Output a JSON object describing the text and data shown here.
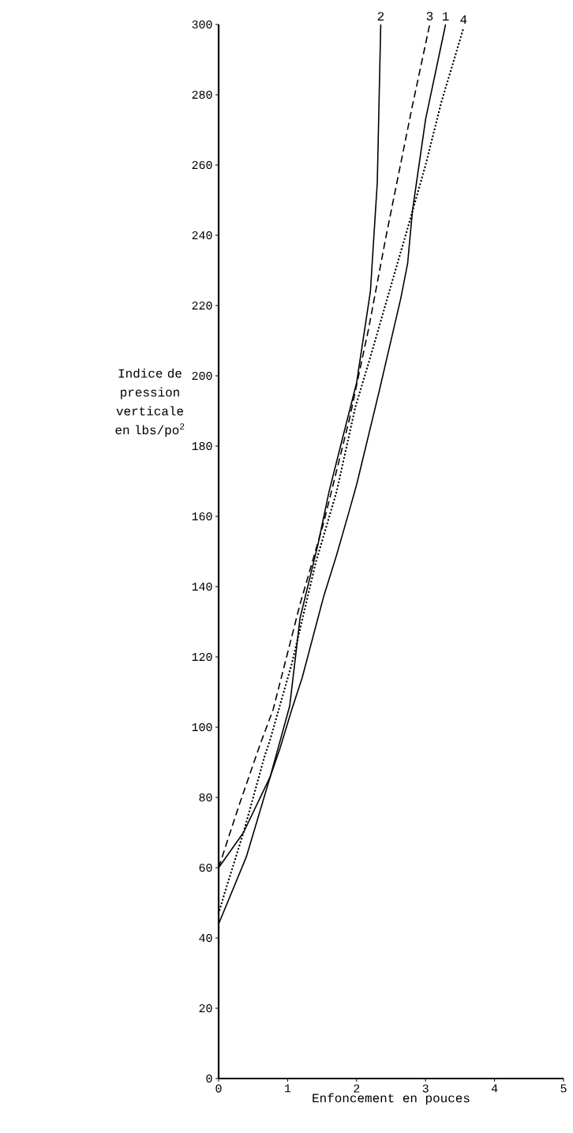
{
  "chart_data": {
    "type": "line",
    "xlabel": "Enfoncement en pouces",
    "ylabel": "Indice de pression verticale en lbs/po$^{2}$",
    "xlim": [
      0,
      5
    ],
    "ylim": [
      0,
      300
    ],
    "xticks": [
      0,
      1,
      2,
      3,
      4,
      5
    ],
    "yticks": [
      0,
      20,
      40,
      60,
      80,
      100,
      120,
      140,
      160,
      180,
      200,
      220,
      240,
      260,
      280,
      300
    ],
    "grid": false,
    "marker": "none",
    "series": [
      {
        "name": "2",
        "color": "#000000",
        "line_style": "solid",
        "x": [
          0,
          0.36,
          0.75,
          1.03,
          1.18,
          1.44,
          1.6,
          1.78,
          2.0,
          2.2,
          2.3,
          2.35
        ],
        "values": [
          60,
          70,
          86,
          106,
          131,
          152,
          167,
          181,
          198,
          224,
          255,
          300
        ]
      },
      {
        "name": "3",
        "color": "#000000",
        "line_style": "dashed",
        "x": [
          0,
          0.3,
          0.6,
          0.79,
          1.18,
          1.52,
          1.9,
          2.05,
          2.17,
          2.43,
          2.81,
          3.06
        ],
        "values": [
          60,
          78,
          95,
          105,
          135,
          158,
          188,
          202,
          213,
          240,
          277,
          300
        ]
      },
      {
        "name": "1",
        "color": "#000000",
        "line_style": "solid",
        "x": [
          0,
          0.4,
          0.75,
          0.89,
          1.06,
          1.21,
          1.52,
          1.71,
          1.9,
          2.0,
          2.32,
          2.64,
          2.74,
          2.81,
          3.0,
          3.29
        ],
        "values": [
          44,
          63,
          86,
          94,
          105,
          114,
          137,
          149,
          162,
          169,
          195,
          222,
          232,
          247,
          273,
          300
        ]
      },
      {
        "name": "4",
        "color": "#000000",
        "line_style": "dotted",
        "x": [
          0,
          0.09,
          0.36,
          0.67,
          0.74,
          1.06,
          1.41,
          1.71,
          1.98,
          2.21,
          2.4,
          2.74,
          3.0,
          3.23,
          3.55
        ],
        "values": [
          47,
          53,
          70,
          92,
          96,
          118,
          147,
          167,
          191,
          206,
          219,
          242,
          260,
          278,
          299
        ]
      }
    ]
  }
}
